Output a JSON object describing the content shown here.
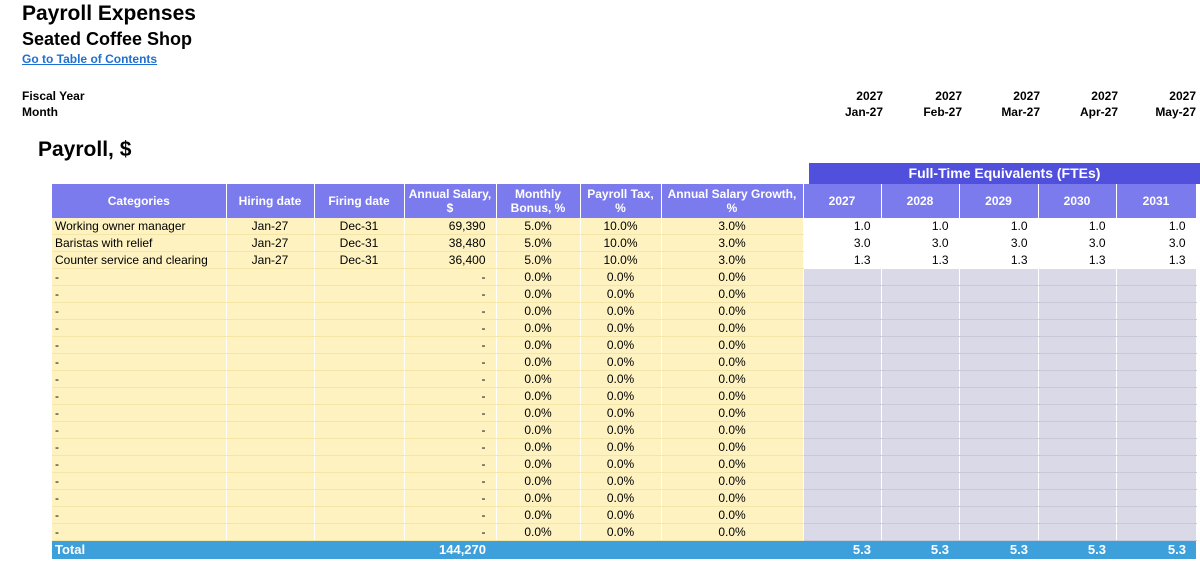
{
  "header": {
    "title": "Payroll Expenses",
    "subtitle": "Seated Coffee Shop",
    "toc_link": "Go to Table of Contents",
    "fiscal_year_label": "Fiscal Year",
    "month_label": "Month"
  },
  "timeline": [
    {
      "year": "2027",
      "month": "Jan-27"
    },
    {
      "year": "2027",
      "month": "Feb-27"
    },
    {
      "year": "2027",
      "month": "Mar-27"
    },
    {
      "year": "2027",
      "month": "Apr-27"
    },
    {
      "year": "2027",
      "month": "May-27"
    }
  ],
  "section_title": "Payroll, $",
  "fte_banner": "Full-Time Equivalents (FTEs)",
  "columns": {
    "categories": "Categories",
    "hiring": "Hiring date",
    "firing": "Firing date",
    "salary": "Annual Salary, $",
    "bonus": "Monthly Bonus, %",
    "tax": "Payroll Tax, %",
    "growth": "Annual Salary Growth, %",
    "years": [
      "2027",
      "2028",
      "2029",
      "2030",
      "2031"
    ]
  },
  "rows": [
    {
      "category": "Working owner manager",
      "hiring": "Jan-27",
      "firing": "Dec-31",
      "salary": "69,390",
      "bonus": "5.0%",
      "tax": "10.0%",
      "growth": "3.0%",
      "fte": [
        "1.0",
        "1.0",
        "1.0",
        "1.0",
        "1.0"
      ]
    },
    {
      "category": "Baristas with relief",
      "hiring": "Jan-27",
      "firing": "Dec-31",
      "salary": "38,480",
      "bonus": "5.0%",
      "tax": "10.0%",
      "growth": "3.0%",
      "fte": [
        "3.0",
        "3.0",
        "3.0",
        "3.0",
        "3.0"
      ]
    },
    {
      "category": "Counter service and clearing",
      "hiring": "Jan-27",
      "firing": "Dec-31",
      "salary": "36,400",
      "bonus": "5.0%",
      "tax": "10.0%",
      "growth": "3.0%",
      "fte": [
        "1.3",
        "1.3",
        "1.3",
        "1.3",
        "1.3"
      ]
    },
    {
      "category": "-",
      "hiring": "",
      "firing": "",
      "salary": "-",
      "bonus": "0.0%",
      "tax": "0.0%",
      "growth": "0.0%",
      "fte": [
        "",
        "",
        "",
        "",
        ""
      ]
    },
    {
      "category": "-",
      "hiring": "",
      "firing": "",
      "salary": "-",
      "bonus": "0.0%",
      "tax": "0.0%",
      "growth": "0.0%",
      "fte": [
        "",
        "",
        "",
        "",
        ""
      ]
    },
    {
      "category": "-",
      "hiring": "",
      "firing": "",
      "salary": "-",
      "bonus": "0.0%",
      "tax": "0.0%",
      "growth": "0.0%",
      "fte": [
        "",
        "",
        "",
        "",
        ""
      ]
    },
    {
      "category": "-",
      "hiring": "",
      "firing": "",
      "salary": "-",
      "bonus": "0.0%",
      "tax": "0.0%",
      "growth": "0.0%",
      "fte": [
        "",
        "",
        "",
        "",
        ""
      ]
    },
    {
      "category": "-",
      "hiring": "",
      "firing": "",
      "salary": "-",
      "bonus": "0.0%",
      "tax": "0.0%",
      "growth": "0.0%",
      "fte": [
        "",
        "",
        "",
        "",
        ""
      ]
    },
    {
      "category": "-",
      "hiring": "",
      "firing": "",
      "salary": "-",
      "bonus": "0.0%",
      "tax": "0.0%",
      "growth": "0.0%",
      "fte": [
        "",
        "",
        "",
        "",
        ""
      ]
    },
    {
      "category": "-",
      "hiring": "",
      "firing": "",
      "salary": "-",
      "bonus": "0.0%",
      "tax": "0.0%",
      "growth": "0.0%",
      "fte": [
        "",
        "",
        "",
        "",
        ""
      ]
    },
    {
      "category": "-",
      "hiring": "",
      "firing": "",
      "salary": "-",
      "bonus": "0.0%",
      "tax": "0.0%",
      "growth": "0.0%",
      "fte": [
        "",
        "",
        "",
        "",
        ""
      ]
    },
    {
      "category": "-",
      "hiring": "",
      "firing": "",
      "salary": "-",
      "bonus": "0.0%",
      "tax": "0.0%",
      "growth": "0.0%",
      "fte": [
        "",
        "",
        "",
        "",
        ""
      ]
    },
    {
      "category": "-",
      "hiring": "",
      "firing": "",
      "salary": "-",
      "bonus": "0.0%",
      "tax": "0.0%",
      "growth": "0.0%",
      "fte": [
        "",
        "",
        "",
        "",
        ""
      ]
    },
    {
      "category": "-",
      "hiring": "",
      "firing": "",
      "salary": "-",
      "bonus": "0.0%",
      "tax": "0.0%",
      "growth": "0.0%",
      "fte": [
        "",
        "",
        "",
        "",
        ""
      ]
    },
    {
      "category": "-",
      "hiring": "",
      "firing": "",
      "salary": "-",
      "bonus": "0.0%",
      "tax": "0.0%",
      "growth": "0.0%",
      "fte": [
        "",
        "",
        "",
        "",
        ""
      ]
    },
    {
      "category": "-",
      "hiring": "",
      "firing": "",
      "salary": "-",
      "bonus": "0.0%",
      "tax": "0.0%",
      "growth": "0.0%",
      "fte": [
        "",
        "",
        "",
        "",
        ""
      ]
    },
    {
      "category": "-",
      "hiring": "",
      "firing": "",
      "salary": "-",
      "bonus": "0.0%",
      "tax": "0.0%",
      "growth": "0.0%",
      "fte": [
        "",
        "",
        "",
        "",
        ""
      ]
    },
    {
      "category": "-",
      "hiring": "",
      "firing": "",
      "salary": "-",
      "bonus": "0.0%",
      "tax": "0.0%",
      "growth": "0.0%",
      "fte": [
        "",
        "",
        "",
        "",
        ""
      ]
    },
    {
      "category": "-",
      "hiring": "",
      "firing": "",
      "salary": "-",
      "bonus": "0.0%",
      "tax": "0.0%",
      "growth": "0.0%",
      "fte": [
        "",
        "",
        "",
        "",
        ""
      ]
    }
  ],
  "total": {
    "label": "Total",
    "salary": "144,270",
    "fte": [
      "5.3",
      "5.3",
      "5.3",
      "5.3",
      "5.3"
    ]
  },
  "colors": {
    "header_purple": "#7b7bee",
    "fte_banner": "#5050dd",
    "input_yellow": "#fdf2c0",
    "fte_gray": "#d9d9e8",
    "total_blue": "#3da0db",
    "link_blue": "#1f6fd1"
  }
}
